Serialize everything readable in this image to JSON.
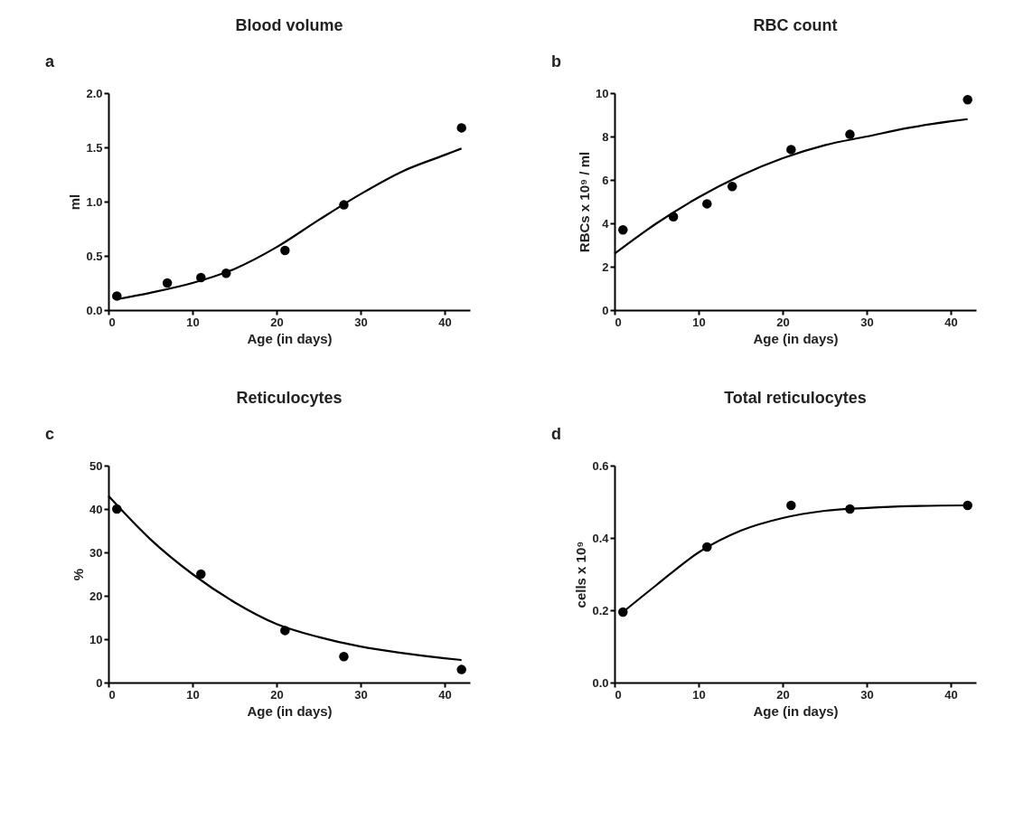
{
  "chart_data": [
    {
      "type": "scatter",
      "title": "Blood volume",
      "xlabel": "Age (in days)",
      "ylabel": "ml",
      "annotations": [
        "a"
      ],
      "marker": "circle",
      "xlim": [
        0,
        43
      ],
      "xticks": [
        0,
        10,
        20,
        30,
        40
      ],
      "ylim": [
        0,
        2.0
      ],
      "yticks": [
        {
          "value": 0,
          "label": "0.0"
        },
        0.5,
        {
          "value": 1,
          "label": "1.0"
        },
        1.5,
        {
          "value": 2,
          "label": "2.0"
        }
      ],
      "series": [
        {
          "color": "#000000",
          "x": [
            1,
            7,
            11,
            14,
            21,
            28,
            42
          ],
          "values": [
            0.13,
            0.25,
            0.3,
            0.34,
            0.55,
            0.97,
            1.68
          ]
        },
        {
          "type": "line",
          "marker": "none",
          "color": "#000000",
          "x": [
            1,
            5,
            10,
            15,
            20,
            25,
            30,
            35,
            40,
            42
          ],
          "values": [
            0.1,
            0.16,
            0.25,
            0.38,
            0.58,
            0.83,
            1.07,
            1.28,
            1.43,
            1.49
          ]
        }
      ]
    },
    {
      "type": "scatter",
      "title": "RBC count",
      "xlabel": "Age (in days)",
      "ylabel": "RBCs x 10⁹ / ml",
      "annotations": [
        "b"
      ],
      "marker": "circle",
      "xlim": [
        0,
        43
      ],
      "xticks": [
        0,
        10,
        20,
        30,
        40
      ],
      "ylim": [
        0,
        10
      ],
      "yticks": [
        0,
        2,
        4,
        6,
        8,
        10
      ],
      "series": [
        {
          "color": "#000000",
          "x": [
            1,
            7,
            11,
            14,
            21,
            28,
            42
          ],
          "values": [
            3.7,
            4.3,
            4.9,
            5.7,
            7.4,
            8.1,
            9.7
          ]
        },
        {
          "type": "line",
          "marker": "none",
          "color": "#000000",
          "x": [
            0,
            5,
            10,
            15,
            20,
            25,
            30,
            35,
            40,
            42
          ],
          "values": [
            2.6,
            4.0,
            5.2,
            6.2,
            7.0,
            7.6,
            8.0,
            8.4,
            8.7,
            8.8
          ]
        }
      ]
    },
    {
      "type": "scatter",
      "title": "Reticulocytes",
      "xlabel": "Age (in days)",
      "ylabel": "%",
      "annotations": [
        "c"
      ],
      "marker": "circle",
      "xlim": [
        0,
        43
      ],
      "xticks": [
        0,
        10,
        20,
        30,
        40
      ],
      "ylim": [
        0,
        50
      ],
      "yticks": [
        0,
        10,
        20,
        30,
        40,
        50
      ],
      "series": [
        {
          "color": "#000000",
          "x": [
            1,
            11,
            21,
            28,
            42
          ],
          "values": [
            40,
            25,
            12,
            6,
            3
          ]
        },
        {
          "type": "line",
          "marker": "none",
          "color": "#000000",
          "x": [
            0,
            5,
            10,
            15,
            20,
            25,
            30,
            35,
            40,
            42
          ],
          "values": [
            43,
            33,
            25,
            18.5,
            13.5,
            10.5,
            8.3,
            6.8,
            5.6,
            5.2
          ]
        }
      ]
    },
    {
      "type": "scatter",
      "title": "Total reticulocytes",
      "xlabel": "Age (in days)",
      "ylabel": "cells x 10⁹",
      "annotations": [
        "d"
      ],
      "marker": "circle",
      "xlim": [
        0,
        43
      ],
      "xticks": [
        0,
        10,
        20,
        30,
        40
      ],
      "ylim": [
        0,
        0.6
      ],
      "yticks": [
        {
          "value": 0,
          "label": "0.0"
        },
        0.2,
        0.4,
        0.6
      ],
      "series": [
        {
          "color": "#000000",
          "x": [
            1,
            11,
            21,
            28,
            42
          ],
          "values": [
            0.195,
            0.375,
            0.49,
            0.48,
            0.49
          ]
        },
        {
          "type": "line",
          "marker": "none",
          "color": "#000000",
          "x": [
            1,
            5,
            10,
            15,
            20,
            25,
            30,
            35,
            42
          ],
          "values": [
            0.195,
            0.27,
            0.36,
            0.42,
            0.455,
            0.475,
            0.483,
            0.488,
            0.49
          ]
        }
      ]
    }
  ]
}
